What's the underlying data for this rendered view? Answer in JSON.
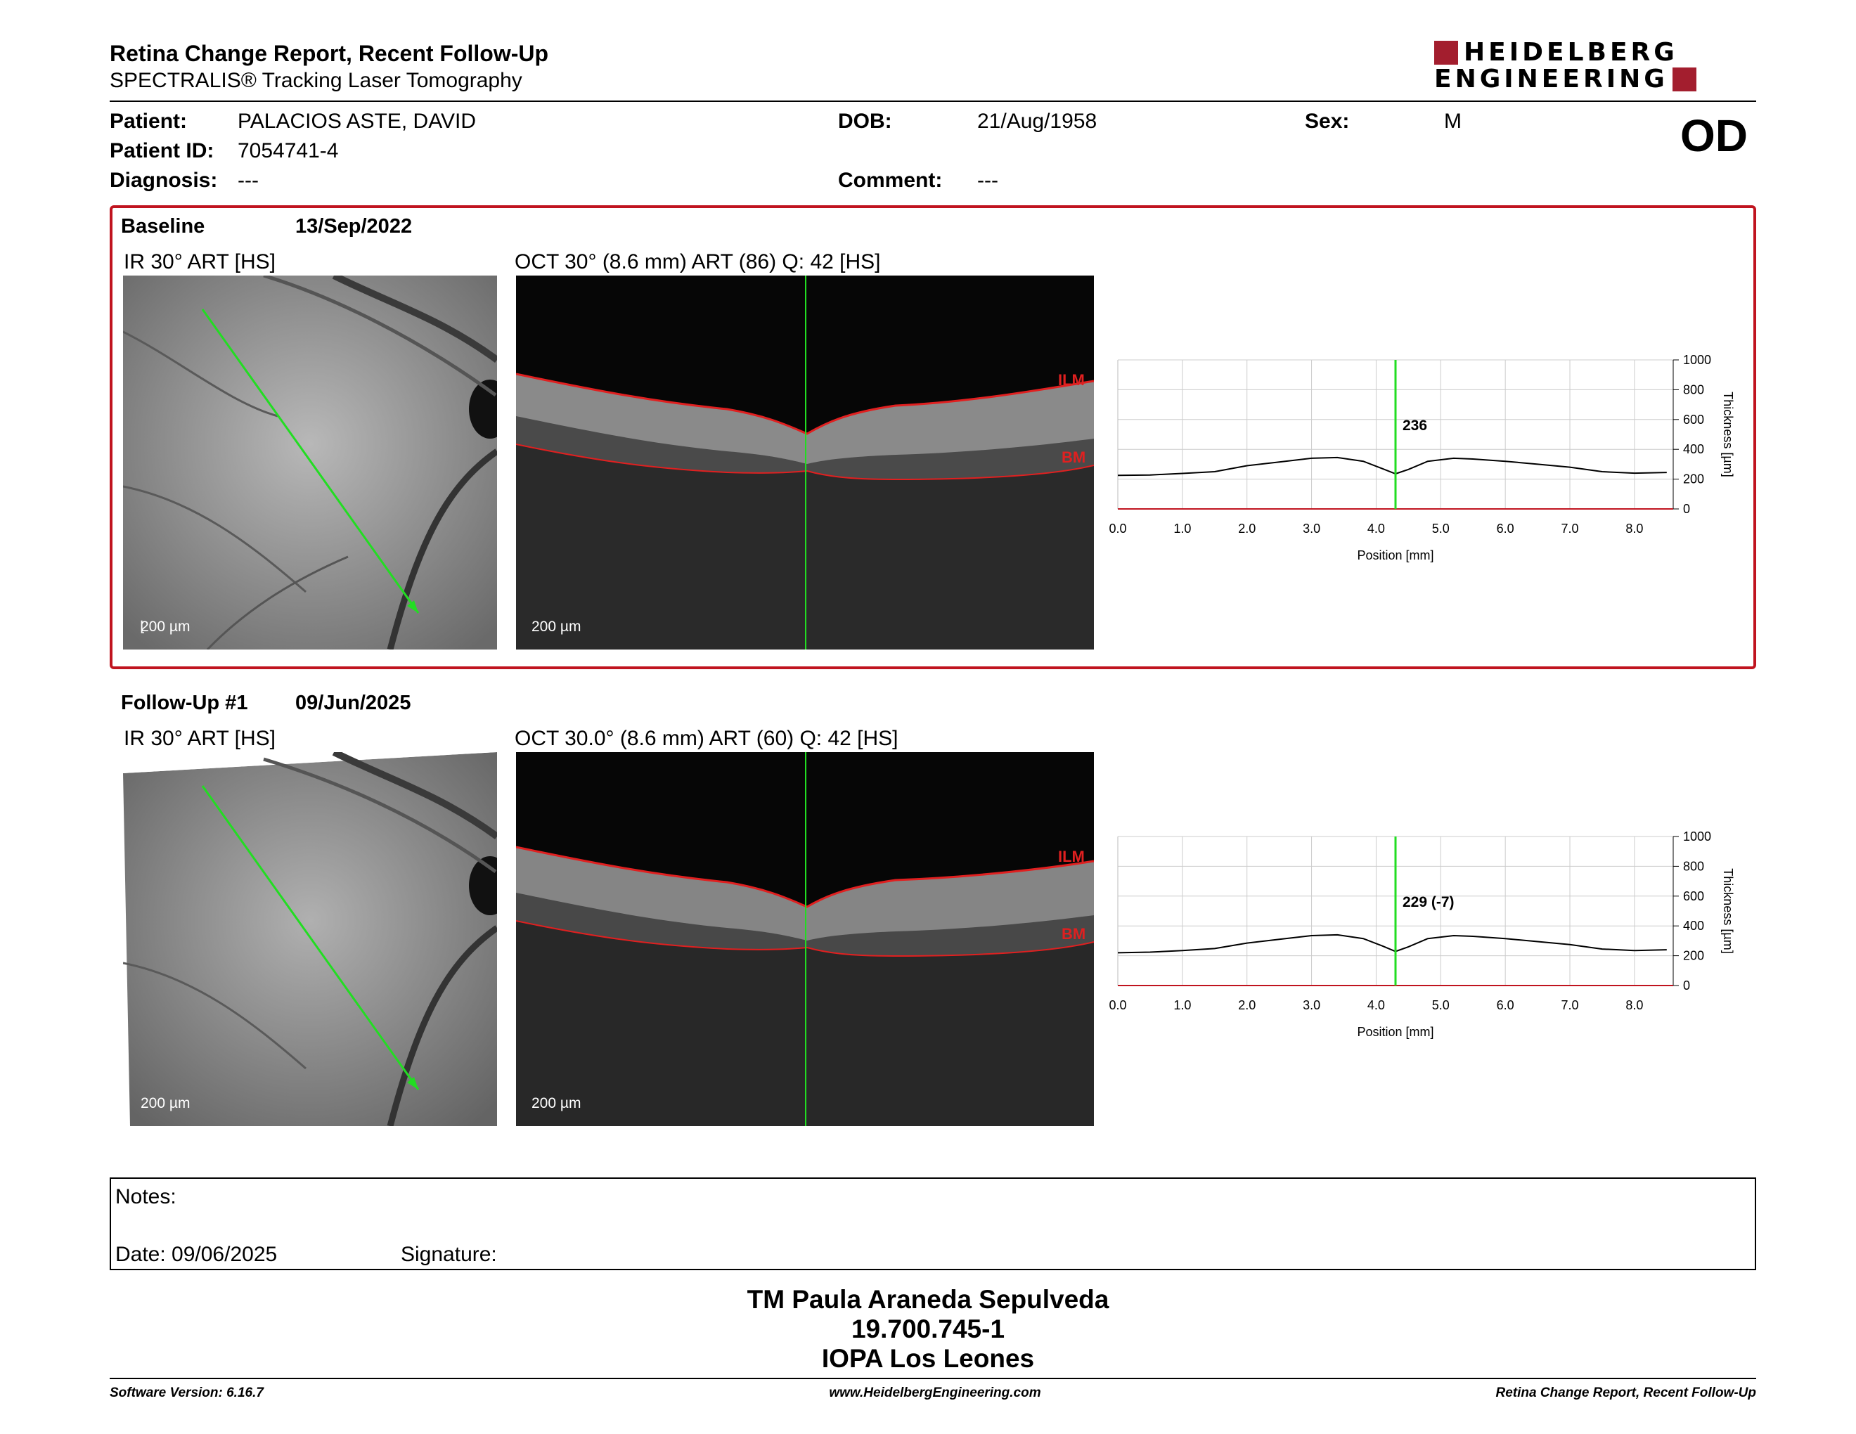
{
  "header": {
    "title": "Retina Change Report, Recent Follow-Up",
    "subtitle": "SPECTRALIS® Tracking Laser Tomography",
    "logo_line1": "HEIDELBERG",
    "logo_line2": "ENGINEERING"
  },
  "patient": {
    "patient_label": "Patient:",
    "patient_value": "PALACIOS ASTE, DAVID",
    "dob_label": "DOB:",
    "dob_value": "21/Aug/1958",
    "sex_label": "Sex:",
    "sex_value": "M",
    "id_label": "Patient ID:",
    "id_value": "7054741-4",
    "diagnosis_label": "Diagnosis:",
    "diagnosis_value": "---",
    "comment_label": "Comment:",
    "comment_value": "---",
    "eye": "OD"
  },
  "baseline": {
    "label": "Baseline",
    "date": "13/Sep/2022",
    "ir_caption": "IR 30° ART [HS]",
    "oct_caption": "OCT 30° (8.6 mm) ART (86) Q: 42 [HS]",
    "scale": "200 µm",
    "ilm": "ILM",
    "bm": "BM",
    "marker_value": "236"
  },
  "followup": {
    "label": "Follow-Up #1",
    "date": "09/Jun/2025",
    "ir_caption": "IR 30° ART [HS]",
    "oct_caption": "OCT 30.0° (8.6 mm) ART (60) Q: 42 [HS]",
    "scale": "200 µm",
    "ilm": "ILM",
    "bm": "BM",
    "marker_value": "229 (-7)"
  },
  "chart_data": [
    {
      "type": "line",
      "xlabel": "Position [mm]",
      "ylabel": "Thickness [µm]",
      "xlim": [
        0,
        8.6
      ],
      "ylim": [
        0,
        1000
      ],
      "x_ticks": [
        "0.0",
        "1.0",
        "2.0",
        "3.0",
        "4.0",
        "5.0",
        "6.0",
        "7.0",
        "8.0"
      ],
      "y_ticks": [
        "0",
        "200",
        "400",
        "600",
        "800",
        "1000"
      ],
      "grid": true,
      "marker_x": 4.3,
      "marker_label": "236",
      "x": [
        0,
        0.5,
        1.0,
        1.5,
        2.0,
        2.5,
        3.0,
        3.4,
        3.8,
        4.1,
        4.3,
        4.5,
        4.8,
        5.2,
        5.5,
        6.0,
        6.5,
        7.0,
        7.5,
        8.0,
        8.5
      ],
      "y": [
        225,
        228,
        238,
        250,
        290,
        315,
        340,
        345,
        320,
        270,
        236,
        265,
        320,
        340,
        335,
        320,
        300,
        280,
        250,
        240,
        245
      ]
    },
    {
      "type": "line",
      "xlabel": "Position [mm]",
      "ylabel": "Thickness [µm]",
      "xlim": [
        0,
        8.6
      ],
      "ylim": [
        0,
        1000
      ],
      "x_ticks": [
        "0.0",
        "1.0",
        "2.0",
        "3.0",
        "4.0",
        "5.0",
        "6.0",
        "7.0",
        "8.0"
      ],
      "y_ticks": [
        "0",
        "200",
        "400",
        "600",
        "800",
        "1000"
      ],
      "grid": true,
      "marker_x": 4.3,
      "marker_label": "229 (-7)",
      "x": [
        0,
        0.5,
        1.0,
        1.5,
        2.0,
        2.5,
        3.0,
        3.4,
        3.8,
        4.1,
        4.3,
        4.5,
        4.8,
        5.2,
        5.5,
        6.0,
        6.5,
        7.0,
        7.5,
        8.0,
        8.5
      ],
      "y": [
        220,
        224,
        235,
        248,
        285,
        310,
        335,
        340,
        315,
        265,
        229,
        260,
        315,
        335,
        330,
        315,
        295,
        275,
        245,
        235,
        240
      ]
    }
  ],
  "notes": {
    "notes_label": "Notes:",
    "date_label": "Date: 09/06/2025",
    "signature_label": "Signature:"
  },
  "signatory": {
    "name": "TM Paula Araneda Sepulveda",
    "id": "19.700.745-1",
    "institution": "IOPA Los Leones"
  },
  "footer": {
    "software": "Software Version: 6.16.7",
    "website": "www.HeidelbergEngineering.com",
    "report": "Retina Change Report, Recent Follow-Up"
  },
  "colors": {
    "accent": "#c0141f",
    "scan_line": "#22dd22",
    "ilm_line": "#e02020"
  }
}
